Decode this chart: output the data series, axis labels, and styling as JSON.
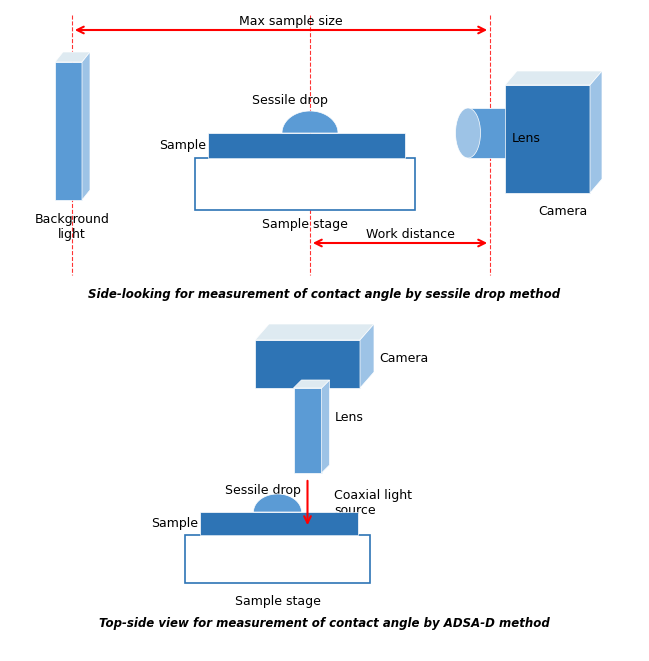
{
  "bg_color": "#ffffff",
  "blue_dark": "#2E74B5",
  "blue_mid": "#5B9BD5",
  "blue_light": "#9DC3E6",
  "blue_lightest": "#DEEAF1",
  "red": "#FF0000",
  "figsize": [
    6.49,
    6.61
  ],
  "dpi": 100,
  "caption1": "Side-looking for measurement of contact angle by sessile drop method",
  "caption2": "Top-side view for measurement of contact angle by ADSA-D method",
  "label_bg_light": "Background\nlight",
  "label_sample_stage1": "Sample stage",
  "label_sessile1": "Sessile drop",
  "label_sample1": "Sample",
  "label_lens": "Lens",
  "label_camera": "Camera",
  "label_max": "Max sample size",
  "label_work": "Work distance",
  "label_camera2": "Camera",
  "label_lens2": "Lens",
  "label_coaxial": "Coaxial light\nsource",
  "label_sessile2": "Sessile drop",
  "label_sample2": "Sample",
  "label_sample_stage2": "Sample stage"
}
